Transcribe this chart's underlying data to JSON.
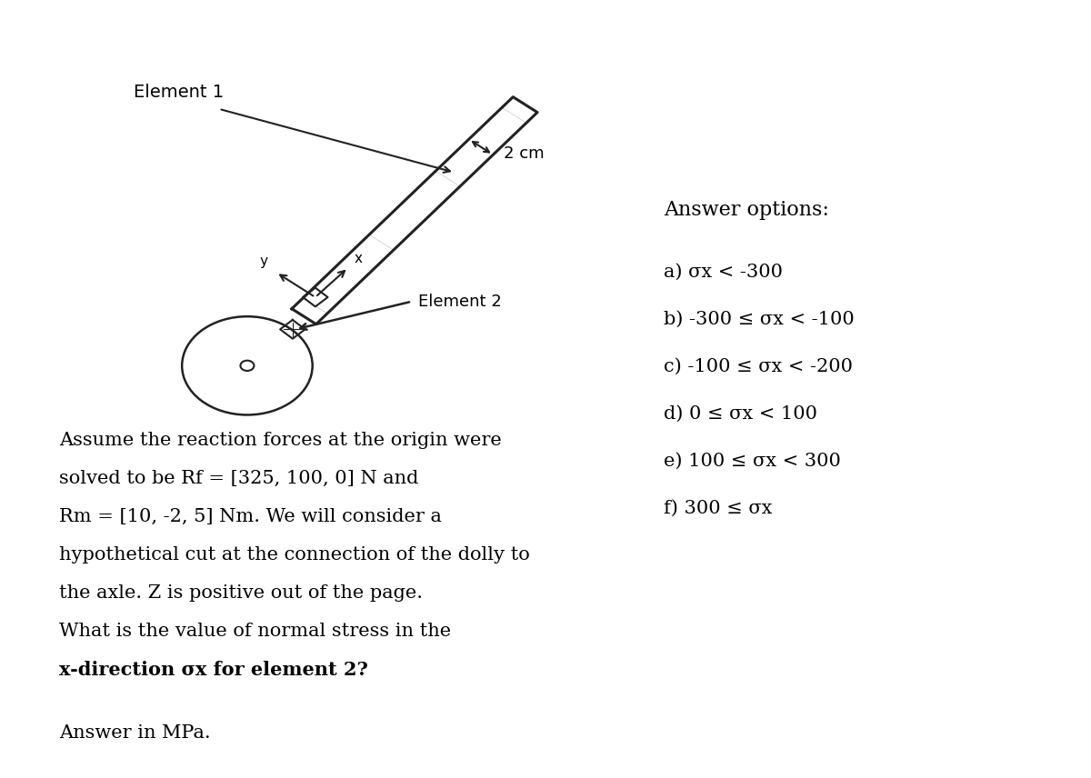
{
  "bg_color": "#ffffff",
  "image_bg_color": "#cdc8bc",
  "bar_color": "#222222",
  "answer_options_title": "Answer options:",
  "answer_options": [
    "a) σx < -300",
    "b) -300 ≤ σx < -100",
    "c) -100 ≤ σx < -200",
    "d) 0 ≤ σx < 100",
    "e) 100 ≤ σx < 300",
    "f) 300 ≤ σx"
  ],
  "body_lines": [
    "Assume the reaction forces at the origin were",
    "solved to be Rf = [325, 100, 0] N and",
    "Rm = [10, -2, 5] Nm. We will consider a",
    "hypothetical cut at the connection of the dolly to",
    "the axle. Z is positive out of the page.",
    "What is the value of normal stress in the"
  ],
  "bold_line": "x-direction σx for element 2?",
  "answer_line": "Answer in MPa.",
  "element1_label": "Element 1",
  "element2_label": "Element 2",
  "dim_label": "2 cm",
  "fontsize_body": 15,
  "fontsize_options": 15,
  "fontsize_options_title": 16,
  "fontsize_diagram": 13
}
